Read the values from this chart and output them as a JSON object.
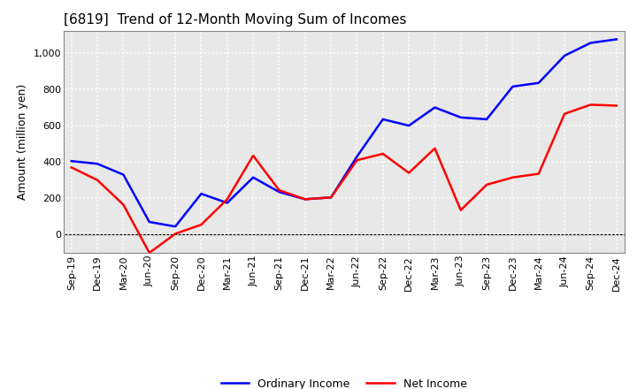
{
  "title": "[6819]  Trend of 12-Month Moving Sum of Incomes",
  "ylabel": "Amount (million yen)",
  "x_labels": [
    "Sep-19",
    "Dec-19",
    "Mar-20",
    "Jun-20",
    "Sep-20",
    "Dec-20",
    "Mar-21",
    "Jun-21",
    "Sep-21",
    "Dec-21",
    "Mar-22",
    "Jun-22",
    "Sep-22",
    "Dec-22",
    "Mar-23",
    "Jun-23",
    "Sep-23",
    "Dec-23",
    "Mar-24",
    "Jun-24",
    "Sep-24",
    "Dec-24"
  ],
  "ordinary_income": [
    405,
    390,
    330,
    70,
    45,
    225,
    175,
    315,
    235,
    195,
    205,
    430,
    635,
    600,
    700,
    645,
    635,
    815,
    835,
    985,
    1055,
    1075
  ],
  "net_income": [
    370,
    300,
    165,
    -100,
    5,
    55,
    195,
    435,
    245,
    195,
    205,
    410,
    445,
    340,
    475,
    135,
    275,
    315,
    335,
    665,
    715,
    710
  ],
  "ordinary_color": "#0000FF",
  "net_color": "#FF0000",
  "ylim": [
    -100,
    1120
  ],
  "yticks": [
    0,
    200,
    400,
    600,
    800,
    1000
  ],
  "bg_color": "#FFFFFF",
  "plot_bg_color": "#E8E8E8",
  "grid_color": "#FFFFFF",
  "title_fontsize": 11,
  "label_fontsize": 9,
  "tick_fontsize": 8,
  "legend_fontsize": 9,
  "line_width": 1.8
}
